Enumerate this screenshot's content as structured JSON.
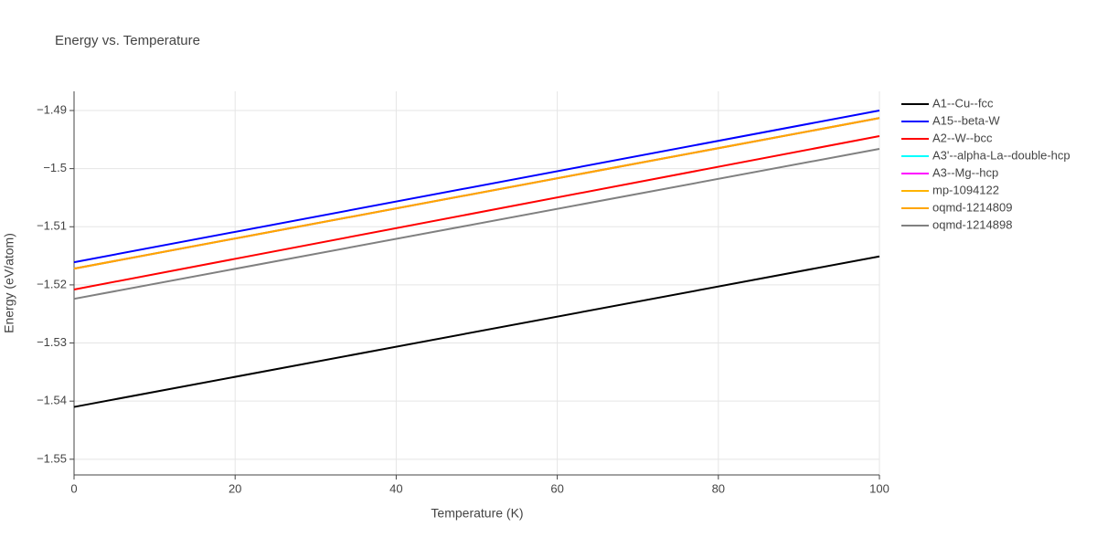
{
  "chart_data": {
    "type": "line",
    "title": "Energy vs. Temperature",
    "x_label": "Temperature (K)",
    "y_label": "Energy (eV/atom)",
    "x": [
      0,
      100
    ],
    "xlim": [
      0,
      100
    ],
    "xticks": [
      0,
      20,
      40,
      60,
      80,
      100
    ],
    "ylim": [
      -1.5527,
      -1.4867
    ],
    "yticks": [
      {
        "value": -1.55,
        "label": "−1.55"
      },
      {
        "value": -1.54,
        "label": "−1.54"
      },
      {
        "value": -1.53,
        "label": "−1.53"
      },
      {
        "value": -1.52,
        "label": "−1.52"
      },
      {
        "value": -1.51,
        "label": "−1.51"
      },
      {
        "value": -1.5,
        "label": "−1.5"
      },
      {
        "value": -1.49,
        "label": "−1.49"
      }
    ],
    "grid": true,
    "series": [
      {
        "name": "A1--Cu--fcc",
        "color": "#000000",
        "values": [
          -1.541,
          -1.5151
        ]
      },
      {
        "name": "A15--beta-W",
        "color": "#0000ff",
        "values": [
          -1.5161,
          -1.49
        ]
      },
      {
        "name": "A2--W--bcc",
        "color": "#ff0000",
        "values": [
          -1.5208,
          -1.4944
        ]
      },
      {
        "name": "A3'--alpha-La--double-hcp",
        "color": "#00ffff",
        "values": [
          -1.5172,
          -1.4913
        ]
      },
      {
        "name": "A3--Mg--hcp",
        "color": "#ff00ff",
        "values": [
          -1.5172,
          -1.4913
        ]
      },
      {
        "name": "mp-1094122",
        "color": "#ffb300",
        "values": [
          -1.5172,
          -1.4913
        ]
      },
      {
        "name": "oqmd-1214809",
        "color": "#ffa500",
        "values": [
          -1.5172,
          -1.4913
        ]
      },
      {
        "name": "oqmd-1214898",
        "color": "#808080",
        "values": [
          -1.5224,
          -1.4966
        ]
      }
    ]
  }
}
